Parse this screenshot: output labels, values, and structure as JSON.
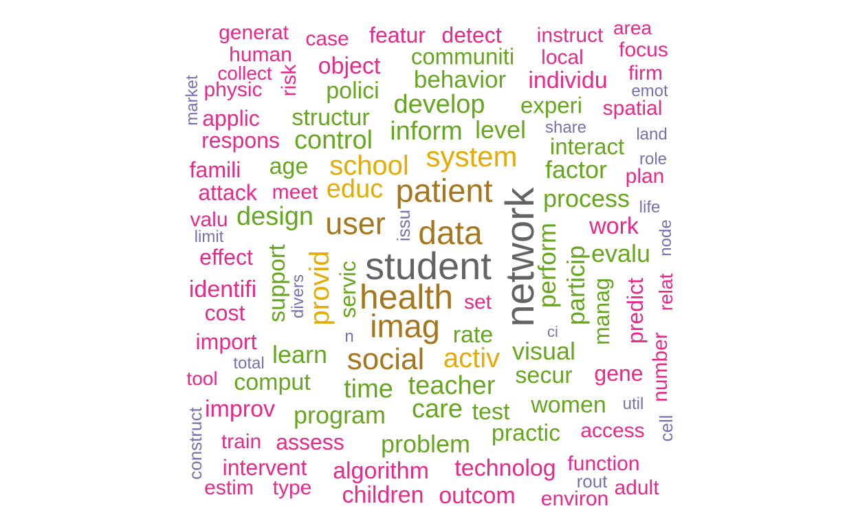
{
  "palette": {
    "gray": "#636363",
    "brown": "#A6761D",
    "gold": "#E6AB02",
    "green": "#66A61E",
    "pink": "#E7298A",
    "purple": "#7570B3"
  },
  "words": [
    {
      "text": "network",
      "color": "gray"
    },
    {
      "text": "student",
      "color": "gray"
    },
    {
      "text": "health",
      "color": "brown"
    },
    {
      "text": "data",
      "color": "brown"
    },
    {
      "text": "patient",
      "color": "brown"
    },
    {
      "text": "imag",
      "color": "brown"
    },
    {
      "text": "user",
      "color": "brown"
    },
    {
      "text": "social",
      "color": "brown"
    },
    {
      "text": "system",
      "color": "gold"
    },
    {
      "text": "school",
      "color": "gold"
    },
    {
      "text": "educ",
      "color": "gold"
    },
    {
      "text": "activ",
      "color": "gold"
    },
    {
      "text": "provid",
      "color": "gold"
    },
    {
      "text": "communiti",
      "color": "green"
    },
    {
      "text": "behavior",
      "color": "green"
    },
    {
      "text": "polici",
      "color": "green"
    },
    {
      "text": "develop",
      "color": "green"
    },
    {
      "text": "experi",
      "color": "green"
    },
    {
      "text": "structur",
      "color": "green"
    },
    {
      "text": "inform",
      "color": "green"
    },
    {
      "text": "level",
      "color": "green"
    },
    {
      "text": "control",
      "color": "green"
    },
    {
      "text": "interact",
      "color": "green"
    },
    {
      "text": "age",
      "color": "green"
    },
    {
      "text": "factor",
      "color": "green"
    },
    {
      "text": "process",
      "color": "green"
    },
    {
      "text": "design",
      "color": "green"
    },
    {
      "text": "perform",
      "color": "green"
    },
    {
      "text": "particip",
      "color": "green"
    },
    {
      "text": "evalu",
      "color": "green"
    },
    {
      "text": "support",
      "color": "green"
    },
    {
      "text": "servic",
      "color": "green"
    },
    {
      "text": "manag",
      "color": "green"
    },
    {
      "text": "rate",
      "color": "green"
    },
    {
      "text": "visual",
      "color": "green"
    },
    {
      "text": "learn",
      "color": "green"
    },
    {
      "text": "secur",
      "color": "green"
    },
    {
      "text": "comput",
      "color": "green"
    },
    {
      "text": "time",
      "color": "green"
    },
    {
      "text": "teacher",
      "color": "green"
    },
    {
      "text": "care",
      "color": "green"
    },
    {
      "text": "test",
      "color": "green"
    },
    {
      "text": "women",
      "color": "green"
    },
    {
      "text": "program",
      "color": "green"
    },
    {
      "text": "problem",
      "color": "green"
    },
    {
      "text": "practic",
      "color": "green"
    },
    {
      "text": "generat",
      "color": "pink"
    },
    {
      "text": "case",
      "color": "pink"
    },
    {
      "text": "featur",
      "color": "pink"
    },
    {
      "text": "detect",
      "color": "pink"
    },
    {
      "text": "instruct",
      "color": "pink"
    },
    {
      "text": "area",
      "color": "pink"
    },
    {
      "text": "human",
      "color": "pink"
    },
    {
      "text": "focus",
      "color": "pink"
    },
    {
      "text": "local",
      "color": "pink"
    },
    {
      "text": "collect",
      "color": "pink"
    },
    {
      "text": "risk",
      "color": "pink"
    },
    {
      "text": "object",
      "color": "pink"
    },
    {
      "text": "firm",
      "color": "pink"
    },
    {
      "text": "individu",
      "color": "pink"
    },
    {
      "text": "physic",
      "color": "pink"
    },
    {
      "text": "spatial",
      "color": "pink"
    },
    {
      "text": "applic",
      "color": "pink"
    },
    {
      "text": "respons",
      "color": "pink"
    },
    {
      "text": "famili",
      "color": "pink"
    },
    {
      "text": "plan",
      "color": "pink"
    },
    {
      "text": "attack",
      "color": "pink"
    },
    {
      "text": "meet",
      "color": "pink"
    },
    {
      "text": "valu",
      "color": "pink"
    },
    {
      "text": "work",
      "color": "pink"
    },
    {
      "text": "effect",
      "color": "pink"
    },
    {
      "text": "identifi",
      "color": "pink"
    },
    {
      "text": "cost",
      "color": "pink"
    },
    {
      "text": "set",
      "color": "pink"
    },
    {
      "text": "predict",
      "color": "pink"
    },
    {
      "text": "import",
      "color": "pink"
    },
    {
      "text": "number",
      "color": "pink"
    },
    {
      "text": "tool",
      "color": "pink"
    },
    {
      "text": "gene",
      "color": "pink"
    },
    {
      "text": "improv",
      "color": "pink"
    },
    {
      "text": "train",
      "color": "pink"
    },
    {
      "text": "assess",
      "color": "pink"
    },
    {
      "text": "access",
      "color": "pink"
    },
    {
      "text": "intervent",
      "color": "pink"
    },
    {
      "text": "function",
      "color": "pink"
    },
    {
      "text": "algorithm",
      "color": "pink"
    },
    {
      "text": "technolog",
      "color": "pink"
    },
    {
      "text": "estim",
      "color": "pink"
    },
    {
      "text": "type",
      "color": "pink"
    },
    {
      "text": "adult",
      "color": "pink"
    },
    {
      "text": "children",
      "color": "pink"
    },
    {
      "text": "outcom",
      "color": "pink"
    },
    {
      "text": "environ",
      "color": "pink"
    },
    {
      "text": "relat",
      "color": "pink"
    },
    {
      "text": "market",
      "color": "purple"
    },
    {
      "text": "emot",
      "color": "purple"
    },
    {
      "text": "share",
      "color": "purple"
    },
    {
      "text": "land",
      "color": "purple"
    },
    {
      "text": "role",
      "color": "purple"
    },
    {
      "text": "life",
      "color": "purple"
    },
    {
      "text": "issu",
      "color": "purple"
    },
    {
      "text": "limit",
      "color": "purple"
    },
    {
      "text": "node",
      "color": "purple"
    },
    {
      "text": "divers",
      "color": "purple"
    },
    {
      "text": "n",
      "color": "purple"
    },
    {
      "text": "ci",
      "color": "purple"
    },
    {
      "text": "total",
      "color": "purple"
    },
    {
      "text": "util",
      "color": "purple"
    },
    {
      "text": "construct",
      "color": "purple"
    },
    {
      "text": "cell",
      "color": "purple"
    },
    {
      "text": "rout",
      "color": "purple"
    }
  ]
}
